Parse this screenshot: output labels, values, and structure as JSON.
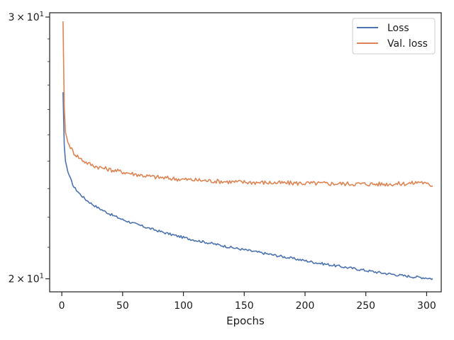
{
  "chart_data": {
    "type": "line",
    "xlabel": "Epochs",
    "ylabel": "",
    "title": "",
    "xlim": [
      -10,
      312
    ],
    "ylim": [
      19.6,
      30.2
    ],
    "yscale": "log",
    "x_ticks": [
      0,
      50,
      100,
      150,
      200,
      250,
      300
    ],
    "y_ticks": [
      {
        "value": 20,
        "base": "2",
        "times": "×",
        "mant": "10",
        "exp": "1"
      },
      {
        "value": 30,
        "base": "3",
        "times": "×",
        "mant": "10",
        "exp": "1"
      }
    ],
    "legend_position": "top-right",
    "grid": false,
    "series": [
      {
        "name": "Loss",
        "color": "#4c72b0",
        "points": [
          [
            1,
            26.7
          ],
          [
            2,
            24.6
          ],
          [
            3,
            24.0
          ],
          [
            5,
            23.6
          ],
          [
            8,
            23.25
          ],
          [
            10,
            23.05
          ],
          [
            15,
            22.8
          ],
          [
            20,
            22.6
          ],
          [
            25,
            22.45
          ],
          [
            30,
            22.32
          ],
          [
            40,
            22.1
          ],
          [
            50,
            21.92
          ],
          [
            60,
            21.78
          ],
          [
            70,
            21.65
          ],
          [
            80,
            21.53
          ],
          [
            90,
            21.42
          ],
          [
            100,
            21.32
          ],
          [
            110,
            21.23
          ],
          [
            120,
            21.15
          ],
          [
            130,
            21.07
          ],
          [
            140,
            20.99
          ],
          [
            150,
            20.92
          ],
          [
            160,
            20.85
          ],
          [
            170,
            20.78
          ],
          [
            180,
            20.71
          ],
          [
            190,
            20.64
          ],
          [
            200,
            20.57
          ],
          [
            210,
            20.5
          ],
          [
            220,
            20.44
          ],
          [
            230,
            20.38
          ],
          [
            240,
            20.32
          ],
          [
            250,
            20.26
          ],
          [
            260,
            20.2
          ],
          [
            270,
            20.15
          ],
          [
            280,
            20.1
          ],
          [
            290,
            20.06
          ],
          [
            300,
            20.03
          ],
          [
            305,
            20.0
          ]
        ]
      },
      {
        "name": "Val. loss",
        "color": "#dd8452",
        "points": [
          [
            1,
            29.8
          ],
          [
            2,
            26.1
          ],
          [
            3,
            25.1
          ],
          [
            5,
            24.7
          ],
          [
            8,
            24.45
          ],
          [
            10,
            24.3
          ],
          [
            15,
            24.1
          ],
          [
            20,
            23.95
          ],
          [
            25,
            23.85
          ],
          [
            30,
            23.78
          ],
          [
            40,
            23.68
          ],
          [
            50,
            23.6
          ],
          [
            60,
            23.52
          ],
          [
            70,
            23.45
          ],
          [
            80,
            23.4
          ],
          [
            90,
            23.36
          ],
          [
            100,
            23.33
          ],
          [
            120,
            23.28
          ],
          [
            140,
            23.24
          ],
          [
            160,
            23.22
          ],
          [
            180,
            23.2
          ],
          [
            200,
            23.19
          ],
          [
            220,
            23.18
          ],
          [
            240,
            23.17
          ],
          [
            260,
            23.16
          ],
          [
            280,
            23.17
          ],
          [
            290,
            23.2
          ],
          [
            295,
            23.25
          ],
          [
            300,
            23.15
          ],
          [
            305,
            23.12
          ]
        ]
      }
    ]
  }
}
